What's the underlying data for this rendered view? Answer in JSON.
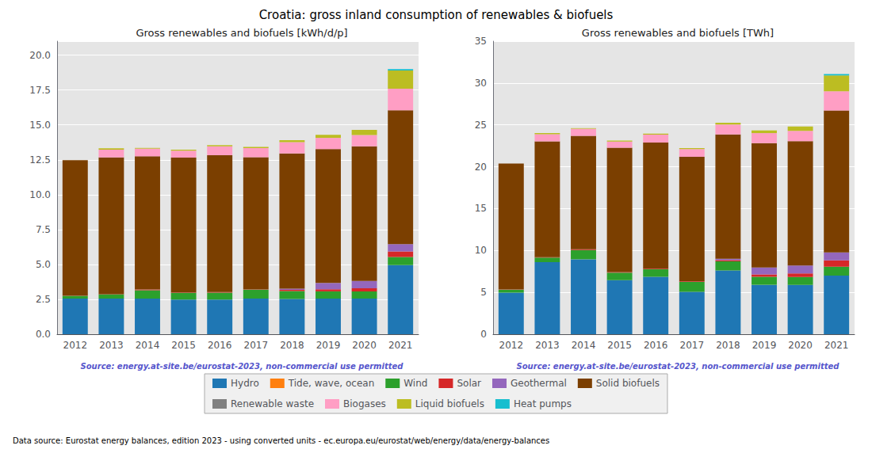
{
  "title": "Croatia: gross inland consumption of renewables & biofuels",
  "annotations": [
    "Data source: Eurostat energy balances, edition 2023 - using converted units - ec.europa.eu/eurostat/web/energy/data/energy-balances"
  ],
  "legend": "bottom",
  "chart_data": [
    {
      "type": "bar",
      "title": "Gross renewables and biofuels [kWh/d/p]",
      "annotations": [
        "Source: energy.at-site.be/eurostat-2023, non-commercial use permitted"
      ],
      "stacked": true,
      "grid": true,
      "categories": [
        "2012",
        "2013",
        "2014",
        "2015",
        "2016",
        "2017",
        "2018",
        "2019",
        "2020",
        "2021"
      ],
      "ylim": [
        0,
        21
      ],
      "yticks": [
        {
          "value": 0,
          "label": "0.0"
        },
        2.5,
        {
          "value": 5,
          "label": "5.0"
        },
        7.5,
        {
          "value": 10,
          "label": "10.0"
        },
        12.5,
        {
          "value": 15,
          "label": "15.0"
        },
        17.5,
        {
          "value": 20,
          "label": "20.0"
        }
      ],
      "series": [
        {
          "name": "Hydro",
          "color": "#1f77b4",
          "values": [
            2.55,
            2.55,
            2.55,
            2.48,
            2.48,
            2.55,
            2.52,
            2.55,
            2.55,
            4.95
          ]
        },
        {
          "name": "Tide, wave, ocean",
          "color": "#ff7f0e",
          "values": [
            0.0,
            0.0,
            0.0,
            0.0,
            0.0,
            0.0,
            0.0,
            0.0,
            0.0,
            0.0
          ]
        },
        {
          "name": "Wind",
          "color": "#2ca02c",
          "values": [
            0.2,
            0.3,
            0.6,
            0.48,
            0.5,
            0.65,
            0.58,
            0.52,
            0.52,
            0.58
          ]
        },
        {
          "name": "Solar",
          "color": "#d62728",
          "values": [
            0.02,
            0.02,
            0.05,
            0.04,
            0.04,
            0.04,
            0.08,
            0.15,
            0.22,
            0.4
          ]
        },
        {
          "name": "Geothermal",
          "color": "#9467bd",
          "values": [
            0.0,
            0.0,
            0.0,
            0.0,
            0.0,
            0.0,
            0.08,
            0.45,
            0.52,
            0.52
          ]
        },
        {
          "name": "Solid biofuels",
          "color": "#7B3F00",
          "values": [
            9.7,
            9.8,
            9.55,
            9.65,
            9.8,
            9.45,
            9.7,
            9.6,
            9.65,
            9.6
          ]
        },
        {
          "name": "Renewable waste",
          "color": "#808080",
          "values": [
            0.0,
            0.0,
            0.0,
            0.0,
            0.0,
            0.0,
            0.0,
            0.0,
            0.0,
            0.0
          ]
        },
        {
          "name": "Biogases",
          "color": "#ff9ec4",
          "values": [
            0.0,
            0.55,
            0.55,
            0.5,
            0.65,
            0.65,
            0.8,
            0.8,
            0.82,
            1.55
          ]
        },
        {
          "name": "Liquid biofuels",
          "color": "#bcbd22",
          "values": [
            0.0,
            0.1,
            0.05,
            0.08,
            0.08,
            0.08,
            0.14,
            0.22,
            0.36,
            1.3
          ]
        },
        {
          "name": "Heat pumps",
          "color": "#17becf",
          "values": [
            0.0,
            0.0,
            0.0,
            0.0,
            0.0,
            0.0,
            0.0,
            0.0,
            0.0,
            0.1
          ]
        }
      ]
    },
    {
      "type": "bar",
      "title": "Gross renewables and biofuels [TWh]",
      "annotations": [
        "Source: energy.at-site.be/eurostat-2023, non-commercial use permitted"
      ],
      "stacked": true,
      "grid": true,
      "categories": [
        "2012",
        "2013",
        "2014",
        "2015",
        "2016",
        "2017",
        "2018",
        "2019",
        "2020",
        "2021"
      ],
      "ylim": [
        0,
        35
      ],
      "yticks": [
        0,
        5,
        10,
        15,
        20,
        25,
        30,
        35
      ],
      "series": [
        {
          "name": "Hydro",
          "color": "#1f77b4",
          "values": [
            4.97,
            8.6,
            8.95,
            6.45,
            6.85,
            5.05,
            7.62,
            5.9,
            5.88,
            7.0
          ]
        },
        {
          "name": "Tide, wave, ocean",
          "color": "#ff7f0e",
          "values": [
            0.0,
            0.0,
            0.0,
            0.0,
            0.0,
            0.0,
            0.0,
            0.0,
            0.0,
            0.0
          ]
        },
        {
          "name": "Wind",
          "color": "#2ca02c",
          "values": [
            0.38,
            0.55,
            1.1,
            0.9,
            0.93,
            1.21,
            1.08,
            0.96,
            0.96,
            1.07
          ]
        },
        {
          "name": "Solar",
          "color": "#d62728",
          "values": [
            0.04,
            0.04,
            0.09,
            0.07,
            0.07,
            0.07,
            0.15,
            0.28,
            0.41,
            0.74
          ]
        },
        {
          "name": "Geothermal",
          "color": "#9467bd",
          "values": [
            0.0,
            0.0,
            0.0,
            0.0,
            0.0,
            0.0,
            0.15,
            0.83,
            0.96,
            0.96
          ]
        },
        {
          "name": "Solid biofuels",
          "color": "#7B3F00",
          "values": [
            15.0,
            13.85,
            13.55,
            14.85,
            15.05,
            14.85,
            14.85,
            14.85,
            14.85,
            16.95
          ]
        },
        {
          "name": "Renewable waste",
          "color": "#808080",
          "values": [
            0.0,
            0.0,
            0.0,
            0.0,
            0.0,
            0.0,
            0.0,
            0.0,
            0.0,
            0.0
          ]
        },
        {
          "name": "Biogases",
          "color": "#ff9ec4",
          "values": [
            0.0,
            0.85,
            0.85,
            0.73,
            0.93,
            0.93,
            1.2,
            1.2,
            1.22,
            2.3
          ]
        },
        {
          "name": "Liquid biofuels",
          "color": "#bcbd22",
          "values": [
            0.0,
            0.14,
            0.07,
            0.12,
            0.12,
            0.12,
            0.21,
            0.32,
            0.53,
            1.9
          ]
        },
        {
          "name": "Heat pumps",
          "color": "#17becf",
          "values": [
            0.0,
            0.0,
            0.0,
            0.0,
            0.0,
            0.0,
            0.0,
            0.0,
            0.0,
            0.15
          ]
        }
      ]
    }
  ]
}
